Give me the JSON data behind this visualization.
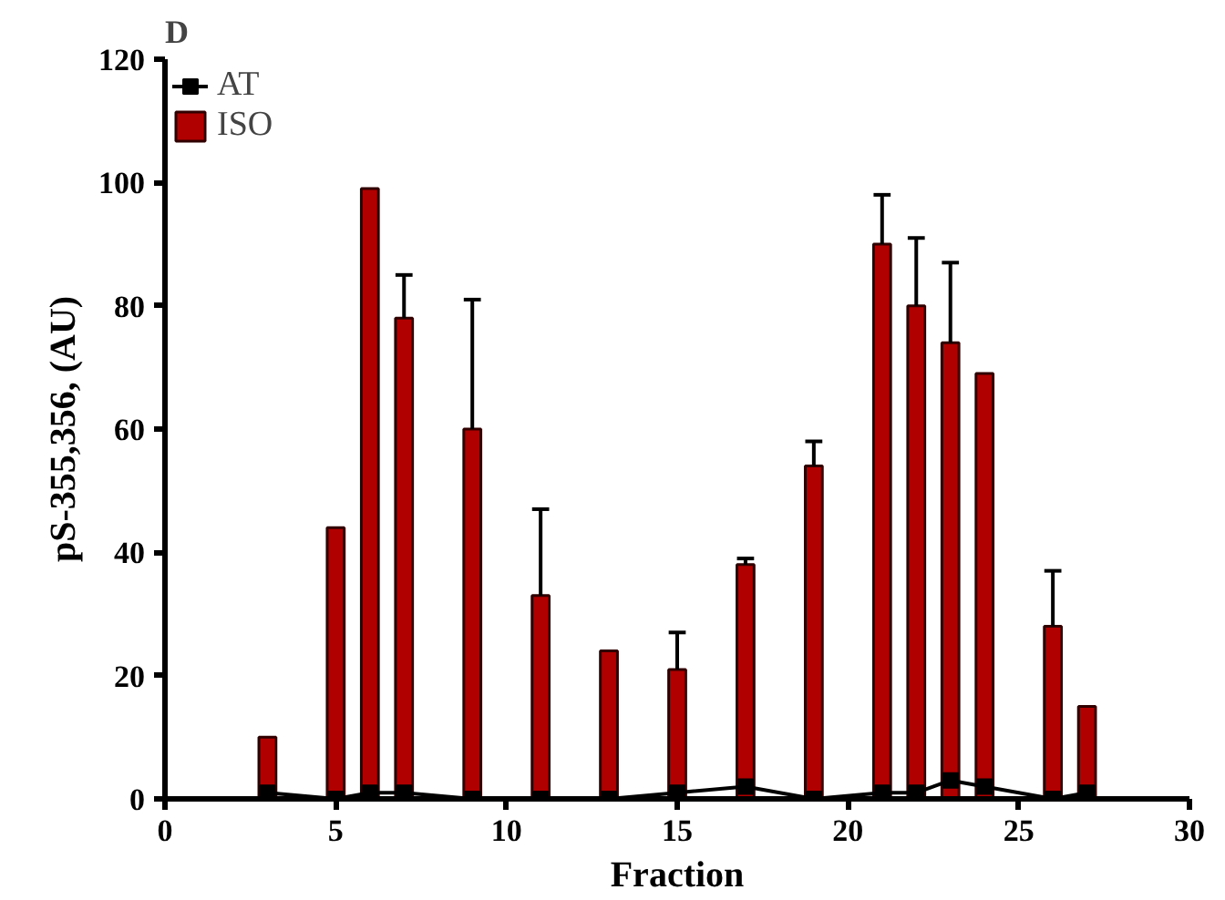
{
  "chart_data": {
    "type": "bar",
    "title": "D",
    "xlabel": "Fraction",
    "ylabel": "pS-355,356, (AU)",
    "x": [
      3,
      5,
      6,
      7,
      9,
      11,
      13,
      15,
      17,
      19,
      21,
      22,
      23,
      24,
      26,
      27
    ],
    "series": [
      {
        "name": "AT",
        "type": "line",
        "color": "#000000",
        "marker": "square",
        "values": [
          1,
          0,
          1,
          1,
          0,
          0,
          0,
          1,
          2,
          0,
          1,
          1,
          3,
          2,
          0,
          1
        ]
      },
      {
        "name": "ISO",
        "color": "#b00000",
        "values": [
          10,
          44,
          99,
          78,
          60,
          33,
          24,
          21,
          38,
          54,
          90,
          80,
          74,
          69,
          28,
          15
        ],
        "errors": [
          null,
          null,
          null,
          [
            78,
            85
          ],
          [
            60,
            81
          ],
          [
            33,
            47
          ],
          null,
          [
            21,
            27
          ],
          [
            38,
            39
          ],
          [
            54,
            58
          ],
          [
            90,
            98
          ],
          [
            80,
            91
          ],
          [
            74,
            87
          ],
          null,
          [
            28,
            37
          ],
          null
        ]
      }
    ],
    "xlim": [
      0,
      30
    ],
    "xticks": [
      0,
      5,
      10,
      15,
      20,
      25,
      30
    ],
    "ylim": [
      0,
      120
    ],
    "yticks": [
      0,
      20,
      40,
      60,
      80,
      100,
      120
    ],
    "grid": false,
    "legend": "top left"
  }
}
